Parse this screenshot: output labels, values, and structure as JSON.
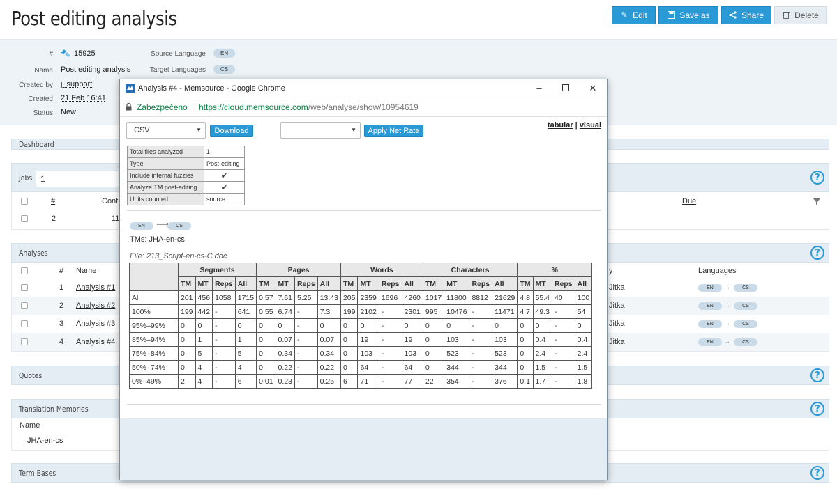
{
  "header": {
    "title": "Post editing analysis",
    "buttons": {
      "edit": "Edit",
      "save_as": "Save as",
      "share": "Share",
      "delete": "Delete"
    }
  },
  "meta": {
    "id_label": "#",
    "id_value": "15925",
    "name_label": "Name",
    "name_value": "Post editing analysis",
    "created_by_label": "Created by",
    "created_by_value": "j_support",
    "created_label": "Created",
    "created_value": "21 Feb 16:41",
    "status_label": "Status",
    "status_value": "New",
    "source_lang_label": "Source Language",
    "source_lang_value": "EN",
    "target_lang_label": "Target Languages",
    "target_lang_value": "CS"
  },
  "panels": {
    "dashboard": "Dashboard",
    "jobs": {
      "title": "Jobs",
      "input_value": "1",
      "col_hash": "#",
      "col_conf": "Confi",
      "col_due": "Due",
      "row_num": "2",
      "row_val": "11"
    },
    "analyses": {
      "title": "Analyses",
      "col_hash": "#",
      "col_name": "Name",
      "col_by": "y",
      "col_languages": "Languages",
      "rows": [
        {
          "num": "1",
          "name": "Analysis #1",
          "by": "Jitka",
          "src": "EN",
          "tgt": "CS"
        },
        {
          "num": "2",
          "name": "Analysis #2",
          "by": "Jitka",
          "src": "EN",
          "tgt": "CS"
        },
        {
          "num": "3",
          "name": "Analysis #3",
          "by": "Jitka",
          "src": "EN",
          "tgt": "CS"
        },
        {
          "num": "4",
          "name": "Analysis #4",
          "by": "Jitka",
          "src": "EN",
          "tgt": "CS"
        }
      ]
    },
    "quotes": "Quotes",
    "tm": {
      "title": "Translation Memories",
      "col_name": "Name",
      "row": "JHA-en-cs"
    },
    "term_bases": "Term Bases",
    "help": "?"
  },
  "popup": {
    "window_title": "Analysis #4 - Memsource - Google Chrome",
    "secure_label": "Zabezpečeno",
    "url_host": "https://cloud.memsource.com",
    "url_path": "/web/analyse/show/10954619",
    "format_select": "CSV",
    "download": "Download",
    "netrate_select": "",
    "apply_net_rate": "Apply Net Rate",
    "view_tabular": "tabular",
    "view_sep": " | ",
    "view_visual": "visual",
    "info": [
      {
        "k": "Total files analyzed",
        "v": "1"
      },
      {
        "k": "Type",
        "v": "Post-editing"
      },
      {
        "k": "Include internal fuzzies",
        "v": "✔"
      },
      {
        "k": "Analyze TM post-editing",
        "v": "✔"
      },
      {
        "k": "Units counted",
        "v": "source"
      }
    ],
    "src_lang": "EN",
    "tgt_lang": "CS",
    "tms": "TMs: JHA-en-cs",
    "file": "File: 213_Script-en-cs-C.doc",
    "table": {
      "groups": [
        "Segments",
        "Pages",
        "Words",
        "Characters",
        "%"
      ],
      "subcols": [
        "TM",
        "MT",
        "Reps",
        "All"
      ],
      "rows": [
        {
          "label": "All",
          "vals": [
            "201",
            "456",
            "1058",
            "1715",
            "0.57",
            "7.61",
            "5.25",
            "13.43",
            "205",
            "2359",
            "1696",
            "4260",
            "1017",
            "11800",
            "8812",
            "21629",
            "4.8",
            "55.4",
            "40",
            "100"
          ]
        },
        {
          "label": "100%",
          "vals": [
            "199",
            "442",
            "-",
            "641",
            "0.55",
            "6.74",
            "-",
            "7.3",
            "199",
            "2102",
            "-",
            "2301",
            "995",
            "10476",
            "-",
            "11471",
            "4.7",
            "49.3",
            "-",
            "54"
          ]
        },
        {
          "label": "95%–99%",
          "vals": [
            "0",
            "0",
            "-",
            "0",
            "0",
            "0",
            "-",
            "0",
            "0",
            "0",
            "-",
            "0",
            "0",
            "0",
            "-",
            "0",
            "0",
            "0",
            "-",
            "0"
          ]
        },
        {
          "label": "85%–94%",
          "vals": [
            "0",
            "1",
            "-",
            "1",
            "0",
            "0.07",
            "-",
            "0.07",
            "0",
            "19",
            "-",
            "19",
            "0",
            "103",
            "-",
            "103",
            "0",
            "0.4",
            "-",
            "0.4"
          ]
        },
        {
          "label": "75%–84%",
          "vals": [
            "0",
            "5",
            "-",
            "5",
            "0",
            "0.34",
            "-",
            "0.34",
            "0",
            "103",
            "-",
            "103",
            "0",
            "523",
            "-",
            "523",
            "0",
            "2.4",
            "-",
            "2.4"
          ]
        },
        {
          "label": "50%–74%",
          "vals": [
            "0",
            "4",
            "-",
            "4",
            "0",
            "0.22",
            "-",
            "0.22",
            "0",
            "64",
            "-",
            "64",
            "0",
            "344",
            "-",
            "344",
            "0",
            "1.5",
            "-",
            "1.5"
          ]
        },
        {
          "label": "0%–49%",
          "vals": [
            "2",
            "4",
            "-",
            "6",
            "0.01",
            "0.23",
            "-",
            "0.25",
            "6",
            "71",
            "-",
            "77",
            "22",
            "354",
            "-",
            "376",
            "0.1",
            "1.7",
            "-",
            "1.8"
          ]
        }
      ]
    }
  }
}
